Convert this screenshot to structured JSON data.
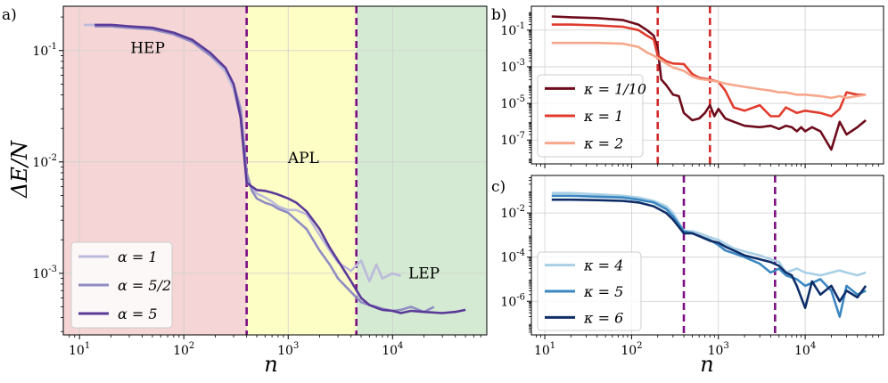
{
  "chart_data": [
    {
      "panel": "a)",
      "type": "line",
      "xscale": "log",
      "yscale": "log",
      "xlim": [
        7,
        80000
      ],
      "ylim": [
        0.00028,
        0.25
      ],
      "xlabel": "n",
      "ylabel": "ΔE/N",
      "xticks": [
        "10^1",
        "10^2",
        "10^3",
        "10^4"
      ],
      "yticks": [
        "10^-3",
        "10^-2",
        "10^-1"
      ],
      "regions": [
        {
          "label": "HEP",
          "from": 7,
          "to": 400,
          "color": "#f5d5d5",
          "label_at": [
            45,
            0.095
          ]
        },
        {
          "label": "APL",
          "from": 400,
          "to": 4500,
          "color": "#fdfdc6",
          "label_at": [
            1400,
            0.0098
          ]
        },
        {
          "label": "LEP",
          "from": 4500,
          "to": 80000,
          "color": "#d4ead2",
          "label_at": [
            20000,
            0.0009
          ]
        }
      ],
      "vlines": [
        400,
        4500
      ],
      "vline_color": "#7b0f82",
      "legend_position": "lower-left",
      "series": [
        {
          "name": "α = 1",
          "color": "#bcbadb",
          "x": [
            11,
            15,
            20,
            30,
            50,
            80,
            120,
            180,
            250,
            300,
            350,
            400,
            450,
            500,
            600,
            700,
            800,
            1000,
            1200,
            1500,
            2000,
            2500,
            3000,
            4000,
            5000,
            6000,
            7000,
            8000,
            9000,
            10000,
            12000
          ],
          "y": [
            0.17,
            0.17,
            0.165,
            0.16,
            0.155,
            0.14,
            0.12,
            0.09,
            0.065,
            0.045,
            0.025,
            0.0065,
            0.0058,
            0.0052,
            0.0048,
            0.0044,
            0.004,
            0.0037,
            0.0037,
            0.0034,
            0.0022,
            0.0016,
            0.00125,
            0.00105,
            0.0013,
            0.00085,
            0.0012,
            0.0009,
            0.00095,
            0.001,
            0.00095
          ]
        },
        {
          "name": "α = 5/2",
          "color": "#8f8cc3",
          "x": [
            14,
            20,
            30,
            50,
            80,
            120,
            180,
            250,
            300,
            350,
            400,
            450,
            500,
            600,
            700,
            800,
            1000,
            1200,
            1500,
            2000,
            2500,
            3000,
            4000,
            5000,
            6000,
            7000,
            8000,
            10000,
            12000,
            15000,
            20000,
            25000
          ],
          "y": [
            0.165,
            0.165,
            0.16,
            0.155,
            0.14,
            0.12,
            0.09,
            0.07,
            0.05,
            0.03,
            0.008,
            0.0055,
            0.0047,
            0.0043,
            0.0041,
            0.0038,
            0.0035,
            0.003,
            0.0025,
            0.0016,
            0.0012,
            0.0009,
            0.00068,
            0.00055,
            0.00052,
            0.0005,
            0.00048,
            0.00046,
            0.00047,
            0.0005,
            0.00045,
            0.0005
          ]
        },
        {
          "name": "α = 5",
          "color": "#5b3a98",
          "x": [
            14,
            20,
            30,
            50,
            80,
            120,
            180,
            250,
            300,
            350,
            400,
            450,
            500,
            600,
            700,
            800,
            1000,
            1200,
            1500,
            2000,
            2500,
            3000,
            4000,
            5000,
            6000,
            7000,
            8000,
            10000,
            12000,
            15000,
            20000,
            30000,
            40000,
            50000
          ],
          "y": [
            0.17,
            0.17,
            0.165,
            0.16,
            0.145,
            0.125,
            0.095,
            0.07,
            0.05,
            0.025,
            0.0065,
            0.006,
            0.0056,
            0.0055,
            0.0053,
            0.0051,
            0.0047,
            0.0043,
            0.0036,
            0.0025,
            0.0017,
            0.0013,
            0.00085,
            0.0006,
            0.00052,
            0.00049,
            0.00047,
            0.00046,
            0.00044,
            0.00046,
            0.00045,
            0.00044,
            0.00045,
            0.00047
          ]
        }
      ]
    },
    {
      "panel": "b)",
      "type": "line",
      "xscale": "log",
      "yscale": "log",
      "xlim": [
        7,
        80000
      ],
      "ylim": [
        5e-09,
        2
      ],
      "yticks": [
        "10^-7",
        "10^-5",
        "10^-3",
        "10^-1"
      ],
      "vlines": [
        200,
        800
      ],
      "vline_color": "#d32a2a",
      "legend_position": "lower-left",
      "series": [
        {
          "name": "κ = 1/10",
          "color": "#6d0c1c",
          "x": [
            12,
            20,
            40,
            80,
            120,
            150,
            180,
            200,
            220,
            250,
            300,
            350,
            400,
            500,
            600,
            700,
            800,
            900,
            1000,
            1200,
            1500,
            2000,
            3000,
            4000,
            5000,
            6000,
            7000,
            8000,
            9000,
            10000,
            12000,
            15000,
            20000,
            25000,
            30000,
            40000,
            50000
          ],
          "y": [
            0.55,
            0.5,
            0.45,
            0.35,
            0.2,
            0.1,
            0.05,
            0.01,
            0.0002,
            0.0001,
            3e-05,
            2.5e-05,
            3e-06,
            1.2e-06,
            1.5e-06,
            3e-06,
            8e-06,
            2e-06,
            5e-06,
            1.5e-06,
            1e-06,
            6e-07,
            5e-07,
            6e-07,
            4e-07,
            6e-07,
            5e-07,
            3e-07,
            5e-07,
            3e-07,
            5e-07,
            3e-07,
            3e-08,
            1e-06,
            2e-07,
            5e-07,
            1.2e-06
          ]
        },
        {
          "name": "κ = 1",
          "color": "#e03c2d",
          "x": [
            12,
            20,
            40,
            80,
            120,
            150,
            180,
            200,
            250,
            300,
            400,
            500,
            600,
            800,
            1000,
            1200,
            1500,
            2000,
            3000,
            4000,
            5000,
            6000,
            8000,
            10000,
            15000,
            20000,
            25000,
            30000,
            40000,
            50000
          ],
          "y": [
            0.2,
            0.2,
            0.18,
            0.15,
            0.1,
            0.05,
            0.03,
            0.004,
            0.002,
            0.0015,
            0.0014,
            0.0004,
            0.00025,
            0.0002,
            0.00015,
            5e-05,
            6e-06,
            4e-06,
            8e-06,
            2e-06,
            2e-06,
            6e-06,
            3e-06,
            4e-06,
            3e-06,
            2e-06,
            5e-06,
            4e-05,
            3e-05,
            3e-05
          ]
        },
        {
          "name": "κ = 2",
          "color": "#f6a78c",
          "x": [
            12,
            20,
            40,
            80,
            120,
            150,
            180,
            200,
            250,
            300,
            400,
            500,
            600,
            800,
            1000,
            1200,
            1500,
            2000,
            3000,
            4000,
            5000,
            6000,
            8000,
            10000,
            15000,
            20000,
            25000,
            30000,
            40000,
            50000
          ],
          "y": [
            0.02,
            0.02,
            0.02,
            0.018,
            0.012,
            0.006,
            0.004,
            0.003,
            0.0015,
            0.0009,
            0.0006,
            0.0003,
            0.00022,
            0.00018,
            0.00015,
            0.00012,
            0.0001,
            8e-05,
            6e-05,
            5e-05,
            4e-05,
            4e-05,
            3e-05,
            3e-05,
            2.5e-05,
            2e-05,
            2.5e-05,
            2e-05,
            2.5e-05,
            3e-05
          ]
        }
      ]
    },
    {
      "panel": "c)",
      "type": "line",
      "xscale": "log",
      "yscale": "log",
      "xlim": [
        7,
        80000
      ],
      "ylim": [
        3e-08,
        0.5
      ],
      "xlabel": "n",
      "xticks": [
        "10^1",
        "10^2",
        "10^3",
        "10^4"
      ],
      "yticks": [
        "10^-6",
        "10^-4",
        "10^-2"
      ],
      "vlines": [
        400,
        4500
      ],
      "vline_color": "#7b0f82",
      "legend_position": "lower-left",
      "series": [
        {
          "name": "κ = 4",
          "color": "#a9cfe5",
          "x": [
            12,
            20,
            40,
            80,
            120,
            180,
            250,
            300,
            400,
            500,
            600,
            800,
            1000,
            1200,
            1500,
            2000,
            3000,
            4000,
            5000,
            6000,
            8000,
            10000,
            15000,
            20000,
            25000,
            30000,
            40000,
            50000
          ],
          "y": [
            0.08,
            0.08,
            0.07,
            0.06,
            0.05,
            0.035,
            0.02,
            0.01,
            0.0015,
            0.0015,
            0.0012,
            0.0008,
            0.0006,
            0.0004,
            0.00025,
            0.00018,
            0.00012,
            8e-05,
            6e-05,
            2e-05,
            3e-05,
            2e-05,
            1.5e-05,
            2e-05,
            2.5e-05,
            2e-05,
            1.5e-05,
            2e-05
          ]
        },
        {
          "name": "κ = 5",
          "color": "#3b87c2",
          "x": [
            12,
            20,
            40,
            80,
            120,
            180,
            250,
            300,
            400,
            500,
            600,
            800,
            1000,
            1200,
            1500,
            2000,
            3000,
            4000,
            5000,
            6000,
            8000,
            10000,
            15000,
            20000,
            25000,
            30000,
            40000,
            50000
          ],
          "y": [
            0.06,
            0.06,
            0.055,
            0.05,
            0.04,
            0.03,
            0.015,
            0.007,
            0.0015,
            0.0012,
            0.0009,
            0.0006,
            0.00035,
            0.0002,
            0.00015,
            0.0001,
            5e-05,
            2e-05,
            3e-05,
            1.5e-05,
            1e-05,
            5e-06,
            1e-05,
            3e-06,
            2e-07,
            5e-06,
            2e-06,
            3e-06
          ]
        },
        {
          "name": "κ = 6",
          "color": "#0f2e68",
          "x": [
            12,
            20,
            40,
            80,
            120,
            180,
            250,
            300,
            400,
            500,
            600,
            800,
            1000,
            1200,
            1500,
            2000,
            3000,
            4000,
            5000,
            6000,
            7000,
            8000,
            10000,
            12000,
            15000,
            20000,
            25000,
            30000,
            40000,
            50000
          ],
          "y": [
            0.04,
            0.04,
            0.038,
            0.035,
            0.03,
            0.02,
            0.01,
            0.005,
            0.0012,
            0.0012,
            0.0009,
            0.00055,
            0.00045,
            0.0003,
            0.0002,
            0.00012,
            8e-05,
            6e-05,
            4e-05,
            2e-05,
            1.5e-05,
            5e-06,
            5e-07,
            8e-06,
            2e-06,
            5e-06,
            1e-06,
            3e-06,
            1.5e-06,
            5e-06
          ]
        }
      ]
    }
  ]
}
